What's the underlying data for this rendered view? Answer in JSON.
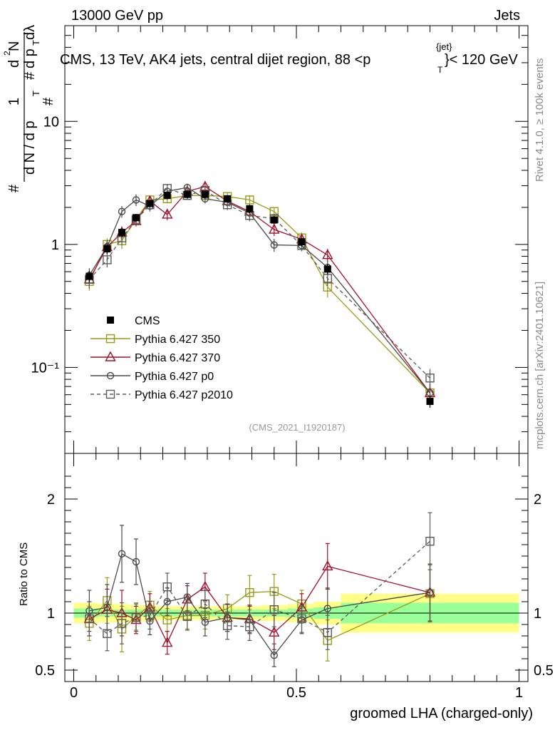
{
  "header": {
    "left": "13000 GeV pp",
    "right": "Jets",
    "plot_title": "CMS, 13 TeV, AK4 jets, central dijet region, 88 <p",
    "plot_title_sup": "{jet}",
    "plot_title_sub": "T",
    "plot_title_end": "}< 120 GeV",
    "side_rivet": "Rivet 4.1.0, ≥ 100k events",
    "side_mcplots": "mcplots.cern.ch [arXiv:2401.10621]",
    "analysis_ref": "(CMS_2021_I1920187)"
  },
  "colors": {
    "cms": "#000000",
    "p350": "#9a9a1a",
    "p370": "#a0102a",
    "p0": "#4a4a4a",
    "p2010": "#5a5a5a",
    "band_inner": "#99ff99",
    "band_outer": "#ffff88"
  },
  "chart_data": [
    {
      "type": "line",
      "title": "CMS, 13 TeV, AK4 jets, central dijet region, 88 < pT(jet) < 120 GeV",
      "xlabel": "groomed LHA (charged-only)",
      "ylabel": "(1 / dN/dpT) d²N/(dpT dλ)",
      "yscale": "log",
      "xlim": [
        -0.02,
        1.02
      ],
      "ylim": [
        0.02,
        60
      ],
      "ytick_labels": [
        "10⁻¹",
        "1",
        "10"
      ],
      "series": [
        {
          "name": "CMS",
          "style": "filled-square",
          "x": [
            0.035,
            0.075,
            0.108,
            0.14,
            0.171,
            0.21,
            0.255,
            0.295,
            0.345,
            0.395,
            0.45,
            0.512,
            0.57,
            0.8
          ],
          "y": [
            0.55,
            0.92,
            1.25,
            1.65,
            2.15,
            2.5,
            2.55,
            2.55,
            2.35,
            1.95,
            1.58,
            1.05,
            0.63,
            0.053
          ],
          "err": [
            0.06,
            0.08,
            0.1,
            0.12,
            0.15,
            0.18,
            0.18,
            0.18,
            0.16,
            0.15,
            0.12,
            0.09,
            0.06,
            0.006
          ]
        },
        {
          "name": "Pythia 6.427 350",
          "style": "open-square-solid",
          "x": [
            0.035,
            0.075,
            0.108,
            0.14,
            0.171,
            0.21,
            0.255,
            0.295,
            0.345,
            0.395,
            0.45,
            0.512,
            0.57,
            0.8
          ],
          "y": [
            0.5,
            1.0,
            1.07,
            1.6,
            2.3,
            2.35,
            2.5,
            2.5,
            2.45,
            2.3,
            1.85,
            1.13,
            0.45,
            0.062
          ],
          "err": [
            0.08,
            0.12,
            0.15,
            0.15,
            0.2,
            0.2,
            0.2,
            0.2,
            0.2,
            0.2,
            0.15,
            0.12,
            0.08,
            0.012
          ]
        },
        {
          "name": "Pythia 6.427 370",
          "style": "open-triangle-solid",
          "x": [
            0.035,
            0.075,
            0.108,
            0.14,
            0.171,
            0.21,
            0.255,
            0.295,
            0.345,
            0.395,
            0.45,
            0.512,
            0.57,
            0.8
          ],
          "y": [
            0.52,
            0.95,
            1.25,
            1.55,
            2.25,
            1.75,
            2.7,
            2.95,
            2.25,
            1.85,
            1.32,
            1.1,
            0.82,
            0.062
          ],
          "err": [
            0.08,
            0.12,
            0.15,
            0.15,
            0.2,
            0.18,
            0.2,
            0.2,
            0.2,
            0.18,
            0.15,
            0.12,
            0.1,
            0.012
          ]
        },
        {
          "name": "Pythia 6.427 p0",
          "style": "open-circle-solid",
          "x": [
            0.035,
            0.075,
            0.108,
            0.14,
            0.171,
            0.21,
            0.255,
            0.295,
            0.345,
            0.395,
            0.45,
            0.512,
            0.57,
            0.8
          ],
          "y": [
            0.56,
            0.96,
            1.85,
            2.3,
            2.05,
            2.7,
            2.9,
            2.35,
            2.2,
            1.8,
            0.99,
            0.98,
            0.65,
            0.062
          ],
          "err": [
            0.08,
            0.12,
            0.2,
            0.25,
            0.2,
            0.22,
            0.22,
            0.2,
            0.2,
            0.18,
            0.12,
            0.1,
            0.08,
            0.012
          ]
        },
        {
          "name": "Pythia 6.427 p2010",
          "style": "open-square-dashed",
          "x": [
            0.035,
            0.075,
            0.108,
            0.14,
            0.171,
            0.21,
            0.255,
            0.295,
            0.345,
            0.395,
            0.45,
            0.512,
            0.57,
            0.8
          ],
          "y": [
            0.52,
            0.75,
            1.13,
            1.58,
            2.1,
            2.85,
            2.5,
            2.75,
            2.1,
            1.72,
            1.62,
            0.98,
            0.53,
            0.082
          ],
          "err": [
            0.08,
            0.1,
            0.15,
            0.15,
            0.2,
            0.25,
            0.2,
            0.22,
            0.2,
            0.18,
            0.15,
            0.1,
            0.07,
            0.015
          ]
        }
      ]
    },
    {
      "type": "line",
      "title": "Ratio",
      "xlabel": "groomed LHA (charged-only)",
      "ylabel": "Ratio to CMS",
      "xlim": [
        -0.02,
        1.02
      ],
      "ylim": [
        0.4,
        2.4
      ],
      "x_tick_labels": [
        "0",
        "0.5",
        "1"
      ],
      "y_tick_labels": [
        "0.5",
        "1",
        "2"
      ],
      "bands": {
        "edges": [
          0.0,
          0.055,
          0.095,
          0.125,
          0.155,
          0.185,
          0.235,
          0.275,
          0.315,
          0.37,
          0.42,
          0.48,
          0.54,
          0.6,
          1.0
        ],
        "inner": [
          0.04,
          0.03,
          0.03,
          0.03,
          0.03,
          0.03,
          0.03,
          0.03,
          0.03,
          0.03,
          0.03,
          0.04,
          0.05,
          0.09
        ],
        "outer": [
          0.09,
          0.08,
          0.08,
          0.07,
          0.07,
          0.06,
          0.06,
          0.06,
          0.06,
          0.06,
          0.07,
          0.08,
          0.1,
          0.17
        ]
      },
      "series": [
        {
          "name": "Pythia 6.427 350",
          "x": [
            0.035,
            0.075,
            0.108,
            0.14,
            0.171,
            0.21,
            0.255,
            0.295,
            0.345,
            0.395,
            0.45,
            0.512,
            0.57,
            0.8
          ],
          "y": [
            0.91,
            1.11,
            0.86,
            0.97,
            1.07,
            0.94,
            0.98,
            0.98,
            1.04,
            1.18,
            1.19,
            1.08,
            0.76,
            1.17
          ],
          "err": [
            0.15,
            0.2,
            0.2,
            0.12,
            0.12,
            0.1,
            0.12,
            0.12,
            0.12,
            0.15,
            0.15,
            0.12,
            0.18,
            0.25
          ]
        },
        {
          "name": "Pythia 6.427 370",
          "x": [
            0.035,
            0.075,
            0.108,
            0.14,
            0.171,
            0.21,
            0.255,
            0.295,
            0.345,
            0.395,
            0.45,
            0.512,
            0.57,
            0.8
          ],
          "y": [
            0.95,
            1.03,
            1.0,
            0.94,
            1.05,
            0.74,
            1.12,
            1.23,
            0.96,
            0.95,
            0.83,
            1.05,
            1.41,
            1.18
          ],
          "err": [
            0.15,
            0.18,
            0.2,
            0.12,
            0.12,
            0.1,
            0.12,
            0.12,
            0.12,
            0.12,
            0.15,
            0.12,
            0.2,
            0.25
          ]
        },
        {
          "name": "Pythia 6.427 p0",
          "x": [
            0.035,
            0.075,
            0.108,
            0.14,
            0.171,
            0.21,
            0.255,
            0.295,
            0.345,
            0.395,
            0.45,
            0.512,
            0.57,
            0.8
          ],
          "y": [
            1.02,
            1.05,
            1.52,
            1.45,
            0.93,
            1.1,
            1.14,
            0.92,
            0.96,
            0.94,
            0.63,
            0.94,
            1.04,
            1.18
          ],
          "err": [
            0.18,
            0.2,
            0.25,
            0.2,
            0.12,
            0.12,
            0.12,
            0.12,
            0.12,
            0.12,
            0.1,
            0.12,
            0.18,
            0.25
          ]
        },
        {
          "name": "Pythia 6.427 p2010",
          "x": [
            0.035,
            0.075,
            0.108,
            0.14,
            0.171,
            0.21,
            0.255,
            0.295,
            0.345,
            0.395,
            0.45,
            0.512,
            0.57,
            0.8
          ],
          "y": [
            0.95,
            0.82,
            0.91,
            0.96,
            0.98,
            1.23,
            0.97,
            1.08,
            0.89,
            0.88,
            1.03,
            0.95,
            0.83,
            1.63
          ],
          "err": [
            0.15,
            0.15,
            0.18,
            0.12,
            0.12,
            0.12,
            0.12,
            0.12,
            0.12,
            0.12,
            0.15,
            0.12,
            0.15,
            0.25
          ]
        }
      ]
    }
  ]
}
